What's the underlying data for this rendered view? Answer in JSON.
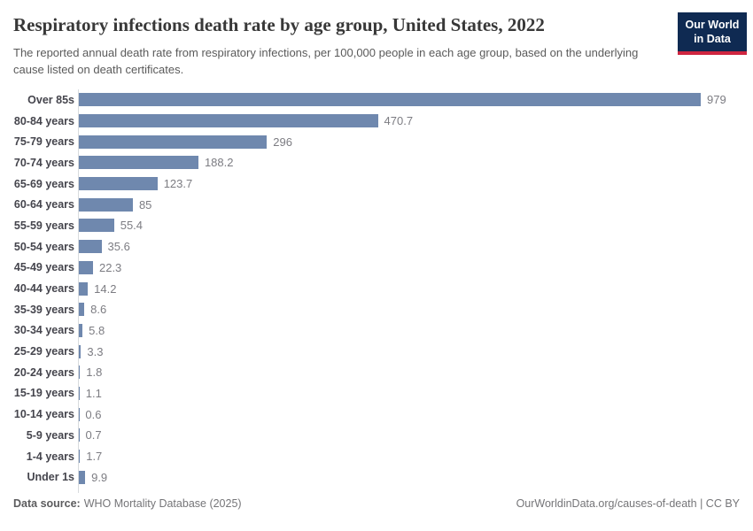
{
  "header": {
    "title": "Respiratory infections death rate by age group, United States, 2022",
    "subtitle": "The reported annual death rate from respiratory infections, per 100,000 people in each age group, based on the underlying cause listed on death certificates."
  },
  "logo": {
    "line1": "Our World",
    "line2": "in Data"
  },
  "chart_data": {
    "type": "bar",
    "orientation": "horizontal",
    "title": "Respiratory infections death rate by age group, United States, 2022",
    "categories": [
      "Over 85s",
      "80-84 years",
      "75-79 years",
      "70-74 years",
      "65-69 years",
      "60-64 years",
      "55-59 years",
      "50-54 years",
      "45-49 years",
      "40-44 years",
      "35-39 years",
      "30-34 years",
      "25-29 years",
      "20-24 years",
      "15-19 years",
      "10-14 years",
      "5-9 years",
      "1-4 years",
      "Under 1s"
    ],
    "values": [
      979,
      470.7,
      296,
      188.2,
      123.7,
      85,
      55.4,
      35.6,
      22.3,
      14.2,
      8.6,
      5.8,
      3.3,
      1.8,
      1.1,
      0.6,
      0.7,
      1.7,
      9.9
    ],
    "value_labels": [
      "979",
      "470.7",
      "296",
      "188.2",
      "123.7",
      "85",
      "55.4",
      "35.6",
      "22.3",
      "14.2",
      "8.6",
      "5.8",
      "3.3",
      "1.8",
      "1.1",
      "0.6",
      "0.7",
      "1.7",
      "9.9"
    ],
    "xlabel": "",
    "ylabel": "",
    "xlim": [
      0,
      979
    ],
    "grid": false,
    "legend": false,
    "data_labels": true
  },
  "footer": {
    "data_source_label": "Data source:",
    "data_source_value": "WHO Mortality Database (2025)",
    "attribution": "OurWorldinData.org/causes-of-death | CC BY"
  },
  "colors": {
    "bar": "#6f88ae",
    "logo_background": "#0f2a52",
    "logo_stripe": "#cf2540",
    "axis_line": "#d8dbde"
  }
}
